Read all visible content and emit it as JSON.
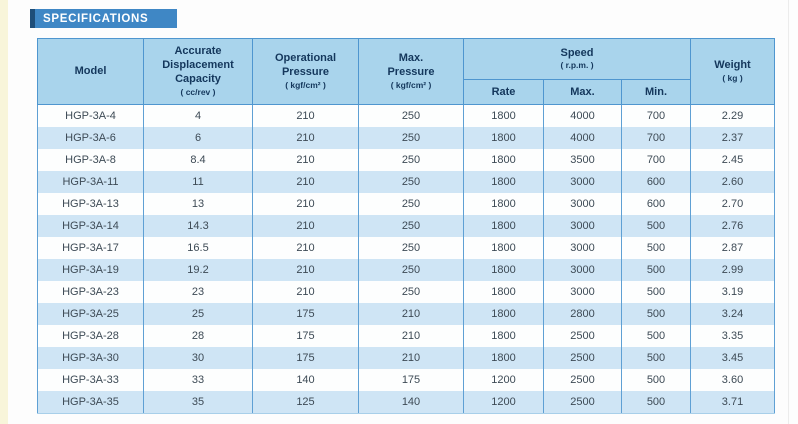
{
  "page": {
    "title": "SPECIFICATIONS"
  },
  "colors": {
    "title_bar_blue": "#3f87c5",
    "title_bar_cap_navy": "#1e4e79",
    "header_bg": "#a9d4ec",
    "header_text": "#14375c",
    "row_alt_bg": "#cfe5f5",
    "cell_border": "#5fa0d4",
    "data_text": "#3d4a55",
    "left_strip": "#f8f5da"
  },
  "table": {
    "columns": {
      "model": {
        "label": "Model"
      },
      "capacity": {
        "label": "Accurate\nDisplacement\nCapacity",
        "unit": "( cc/rev )"
      },
      "operational_pressure": {
        "label": "Operational\nPressure",
        "unit": "( kgf/cm² )"
      },
      "max_pressure": {
        "label": "Max.\nPressure",
        "unit": "( kgf/cm² )"
      },
      "speed": {
        "label": "Speed",
        "unit": "( r.p.m. )",
        "sub": [
          "Rate",
          "Max.",
          "Min."
        ]
      },
      "weight": {
        "label": "Weight",
        "unit": "( kg )"
      }
    },
    "rows": [
      [
        "HGP-3A-4",
        "4",
        "210",
        "250",
        "1800",
        "4000",
        "700",
        "2.29"
      ],
      [
        "HGP-3A-6",
        "6",
        "210",
        "250",
        "1800",
        "4000",
        "700",
        "2.37"
      ],
      [
        "HGP-3A-8",
        "8.4",
        "210",
        "250",
        "1800",
        "3500",
        "700",
        "2.45"
      ],
      [
        "HGP-3A-11",
        "11",
        "210",
        "250",
        "1800",
        "3000",
        "600",
        "2.60"
      ],
      [
        "HGP-3A-13",
        "13",
        "210",
        "250",
        "1800",
        "3000",
        "600",
        "2.70"
      ],
      [
        "HGP-3A-14",
        "14.3",
        "210",
        "250",
        "1800",
        "3000",
        "500",
        "2.76"
      ],
      [
        "HGP-3A-17",
        "16.5",
        "210",
        "250",
        "1800",
        "3000",
        "500",
        "2.87"
      ],
      [
        "HGP-3A-19",
        "19.2",
        "210",
        "250",
        "1800",
        "3000",
        "500",
        "2.99"
      ],
      [
        "HGP-3A-23",
        "23",
        "210",
        "250",
        "1800",
        "3000",
        "500",
        "3.19"
      ],
      [
        "HGP-3A-25",
        "25",
        "175",
        "210",
        "1800",
        "2800",
        "500",
        "3.24"
      ],
      [
        "HGP-3A-28",
        "28",
        "175",
        "210",
        "1800",
        "2500",
        "500",
        "3.35"
      ],
      [
        "HGP-3A-30",
        "30",
        "175",
        "210",
        "1800",
        "2500",
        "500",
        "3.45"
      ],
      [
        "HGP-3A-33",
        "33",
        "140",
        "175",
        "1200",
        "2500",
        "500",
        "3.60"
      ],
      [
        "HGP-3A-35",
        "35",
        "125",
        "140",
        "1200",
        "2500",
        "500",
        "3.71"
      ]
    ]
  }
}
